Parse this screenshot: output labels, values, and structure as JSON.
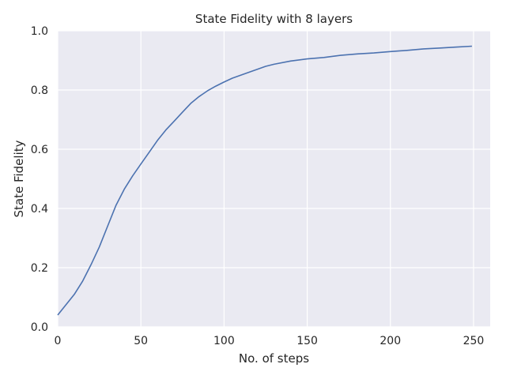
{
  "chart_data": {
    "type": "line",
    "title": "State Fidelity with 8 layers",
    "xlabel": "No. of steps",
    "ylabel": "State Fidelity",
    "xlim": [
      0,
      260
    ],
    "ylim": [
      0.0,
      1.0
    ],
    "xticks": [
      0,
      50,
      100,
      150,
      200,
      250
    ],
    "yticks": [
      0.0,
      0.2,
      0.4,
      0.6,
      0.8,
      1.0
    ],
    "xtick_labels": [
      "0",
      "50",
      "100",
      "150",
      "200",
      "250"
    ],
    "ytick_labels": [
      "0.0",
      "0.2",
      "0.4",
      "0.6",
      "0.8",
      "1.0"
    ],
    "grid": true,
    "background": "#eaeaf2",
    "line_color": "#4c72b0",
    "series": [
      {
        "x": [
          0,
          5,
          10,
          15,
          20,
          25,
          30,
          35,
          40,
          45,
          50,
          55,
          60,
          65,
          70,
          75,
          80,
          85,
          90,
          95,
          100,
          105,
          110,
          115,
          120,
          125,
          130,
          140,
          150,
          160,
          170,
          180,
          190,
          200,
          210,
          220,
          230,
          240,
          249
        ],
        "y": [
          0.04,
          0.075,
          0.11,
          0.155,
          0.21,
          0.27,
          0.34,
          0.41,
          0.465,
          0.51,
          0.55,
          0.59,
          0.63,
          0.665,
          0.695,
          0.725,
          0.755,
          0.778,
          0.797,
          0.813,
          0.827,
          0.84,
          0.85,
          0.86,
          0.87,
          0.88,
          0.887,
          0.898,
          0.905,
          0.91,
          0.917,
          0.922,
          0.925,
          0.93,
          0.934,
          0.939,
          0.942,
          0.945,
          0.948
        ]
      }
    ]
  }
}
